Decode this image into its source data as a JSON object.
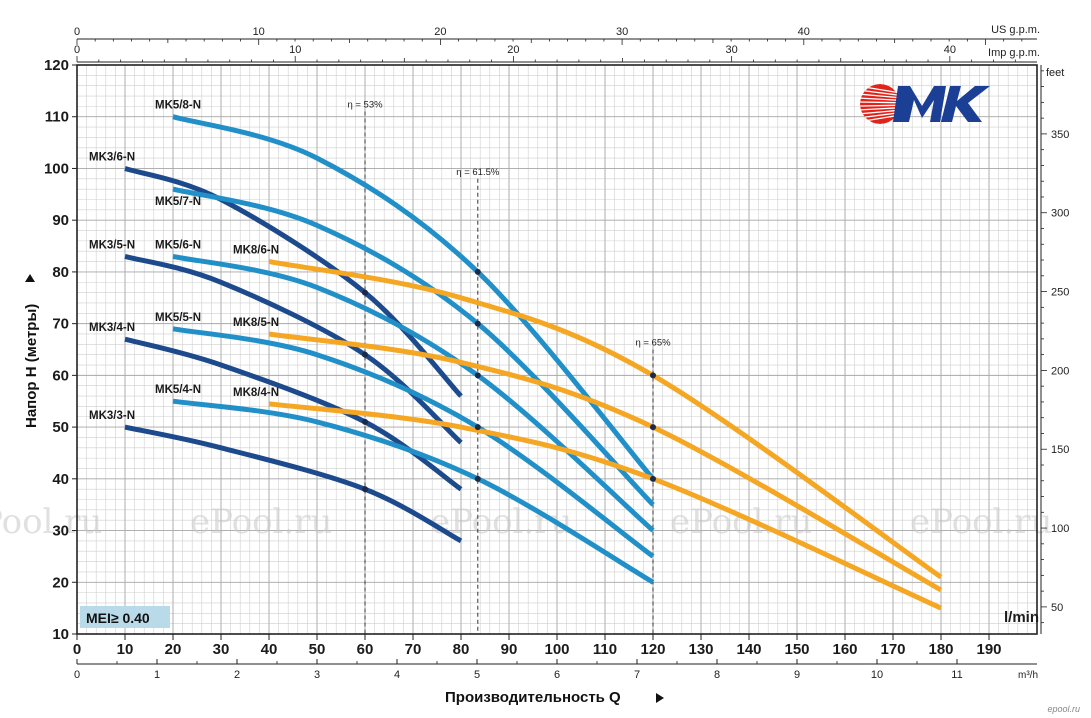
{
  "chart_data": {
    "type": "line",
    "brand": "MK",
    "badge": "MEI≥ 0.40",
    "xlabel": "Производительность Q",
    "ylabel": "Напор H (метры)",
    "x_unit_main": "l/min",
    "y_unit_right": "feet",
    "top_axis_us": "US g.p.m.",
    "top_axis_imp": "Imp g.p.m.",
    "bottom_axis_m3h": "m³/h",
    "xlim": [
      0,
      200
    ],
    "ylim": [
      10,
      120
    ],
    "x_ticks": [
      0,
      10,
      20,
      30,
      40,
      50,
      60,
      70,
      80,
      90,
      100,
      110,
      120,
      130,
      140,
      150,
      160,
      170,
      180,
      190
    ],
    "y_ticks": [
      10,
      20,
      30,
      40,
      50,
      60,
      70,
      80,
      90,
      100,
      110,
      120
    ],
    "m3h_ticks": [
      0,
      1,
      2,
      3,
      4,
      5,
      6,
      7,
      8,
      9,
      10,
      11
    ],
    "us_gpm_ticks": [
      0,
      10,
      20,
      30,
      40
    ],
    "imp_gpm_ticks": [
      0,
      10,
      20,
      30,
      40
    ],
    "feet_ticks": [
      50,
      100,
      150,
      200,
      250,
      300,
      350
    ],
    "efficiency_lines": [
      {
        "label": "η = 53%",
        "x": 60,
        "y_top": 111
      },
      {
        "label": "η = 61.5%",
        "x": 83.5,
        "y_top": 98
      },
      {
        "label": "η = 65%",
        "x": 120,
        "y_top": 65
      }
    ],
    "series": [
      {
        "name": "MK3/3-N",
        "family": "mk3",
        "color": "#1c4a8c",
        "x": [
          10,
          30,
          60,
          80
        ],
        "y": [
          50,
          46,
          38,
          28
        ]
      },
      {
        "name": "MK3/4-N",
        "family": "mk3",
        "color": "#1c4a8c",
        "x": [
          10,
          30,
          60,
          80
        ],
        "y": [
          67,
          62,
          51,
          38
        ]
      },
      {
        "name": "MK3/5-N",
        "family": "mk3",
        "color": "#1c4a8c",
        "x": [
          10,
          30,
          60,
          80
        ],
        "y": [
          83,
          78,
          64,
          47
        ]
      },
      {
        "name": "MK3/6-N",
        "family": "mk3",
        "color": "#1c4a8c",
        "x": [
          10,
          30,
          60,
          80
        ],
        "y": [
          100,
          94,
          76,
          56
        ]
      },
      {
        "name": "MK5/4-N",
        "family": "mk5",
        "color": "#2290c8",
        "x": [
          20,
          50,
          83.5,
          120
        ],
        "y": [
          55,
          51,
          40,
          20
        ]
      },
      {
        "name": "MK5/5-N",
        "family": "mk5",
        "color": "#2290c8",
        "x": [
          20,
          50,
          83.5,
          120
        ],
        "y": [
          69,
          64,
          50,
          25
        ]
      },
      {
        "name": "MK5/6-N",
        "family": "mk5",
        "color": "#2290c8",
        "x": [
          20,
          50,
          83.5,
          120
        ],
        "y": [
          83,
          77,
          60,
          30
        ]
      },
      {
        "name": "MK5/7-N",
        "family": "mk5",
        "color": "#2290c8",
        "x": [
          20,
          50,
          83.5,
          120
        ],
        "y": [
          96,
          89,
          70,
          35
        ]
      },
      {
        "name": "MK5/8-N",
        "family": "mk5",
        "color": "#2290c8",
        "x": [
          20,
          50,
          83.5,
          120
        ],
        "y": [
          110,
          102,
          80,
          40
        ]
      },
      {
        "name": "MK8/4-N",
        "family": "mk8",
        "color": "#f5a623",
        "x": [
          40,
          80,
          120,
          180
        ],
        "y": [
          54.5,
          50,
          40,
          15
        ]
      },
      {
        "name": "MK8/5-N",
        "family": "mk8",
        "color": "#f5a623",
        "x": [
          40,
          80,
          120,
          180
        ],
        "y": [
          68,
          62.5,
          50,
          18.5
        ]
      },
      {
        "name": "MK8/6-N",
        "family": "mk8",
        "color": "#f5a623",
        "x": [
          40,
          80,
          120,
          180
        ],
        "y": [
          82,
          75,
          60,
          21
        ]
      }
    ],
    "grid": true,
    "legend": "none"
  },
  "watermark": "ePool.ru",
  "site_mark": "epool.ru"
}
